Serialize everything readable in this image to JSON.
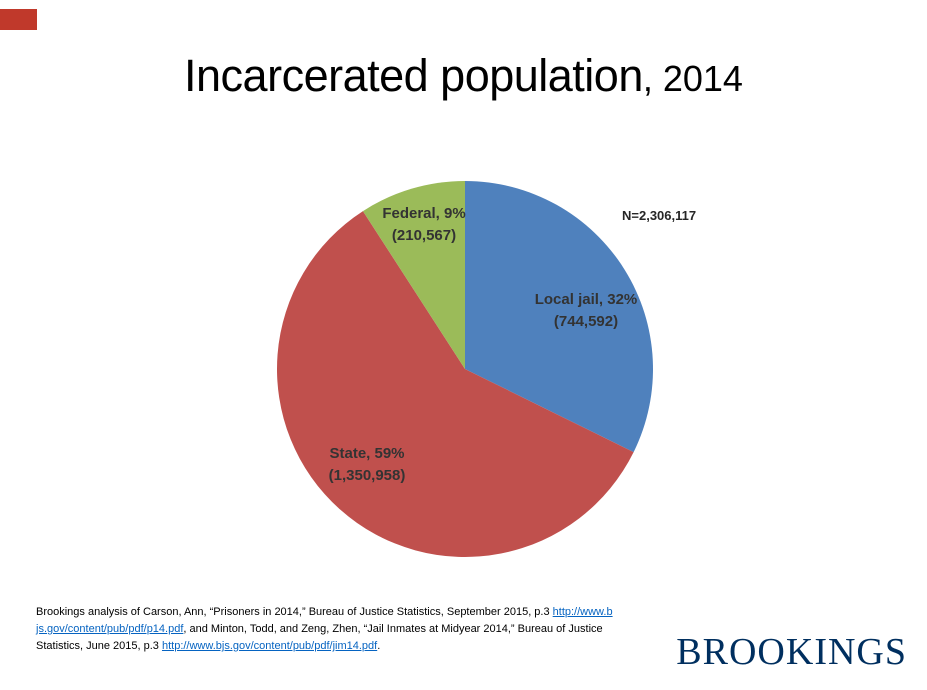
{
  "title": {
    "main": "Incarcerated population",
    "year": ", 2014"
  },
  "accent": {
    "color": "#c0392b"
  },
  "chart_data": {
    "type": "pie",
    "title": "Incarcerated population, 2014",
    "total_label": "N=2,306,117",
    "total": 2306117,
    "categories": [
      "Local jail",
      "State",
      "Federal"
    ],
    "values": [
      744592,
      1350958,
      210567
    ],
    "percents": [
      "32%",
      "59%",
      "9%"
    ],
    "colors": [
      "#4f81bd",
      "#c0504d",
      "#9bbb59"
    ],
    "start_angle": "12 o'clock",
    "direction": "clockwise",
    "legend": "none",
    "labels": [
      {
        "line1": "Local jail, 32%",
        "line2": "(744,592)"
      },
      {
        "line1": "State, 59%",
        "line2": "(1,350,958)"
      },
      {
        "line1": "Federal, 9%",
        "line2": "(210,567)"
      }
    ]
  },
  "footer": {
    "seg1": "Brookings analysis of Carson, Ann, “Prisoners in 2014,” Bureau of Justice Statistics, September 2015, p.3 ",
    "link1": "http://www.bjs.gov/content/pub/pdf/p14.pdf",
    "seg2": ", and Minton, Todd, and Zeng, Zhen, “Jail Inmates at Midyear 2014,” Bureau of Justice Statistics, June 2015, p.3 ",
    "link2": "http://www.bjs.gov/content/pub/pdf/jim14.pdf",
    "seg3": "."
  },
  "logo": {
    "text": "BROOKINGS",
    "color": "#002f5f"
  }
}
